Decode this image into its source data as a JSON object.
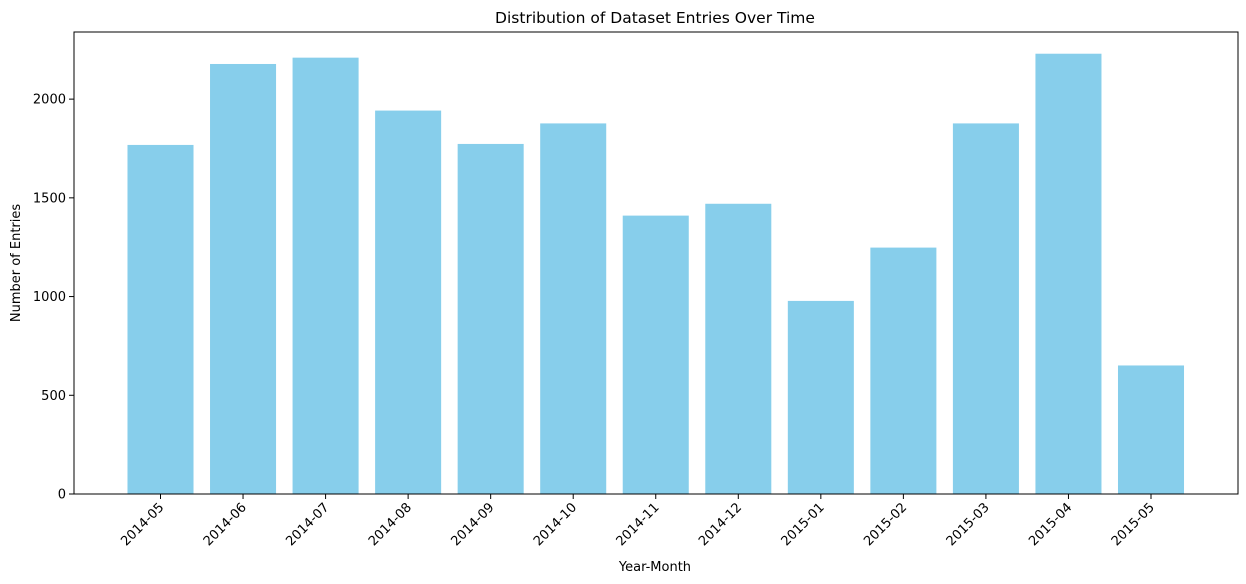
{
  "chart_data": {
    "type": "bar",
    "title": "Distribution of Dataset Entries Over Time",
    "xlabel": "Year-Month",
    "ylabel": "Number of Entries",
    "categories": [
      "2014-05",
      "2014-06",
      "2014-07",
      "2014-08",
      "2014-09",
      "2014-10",
      "2014-11",
      "2014-12",
      "2015-01",
      "2015-02",
      "2015-03",
      "2015-04",
      "2015-05"
    ],
    "values": [
      1768,
      2178,
      2210,
      1942,
      1773,
      1877,
      1410,
      1470,
      978,
      1248,
      1877,
      2230,
      651
    ],
    "ylim": [
      0,
      2340
    ],
    "yticks": [
      0,
      500,
      1000,
      1500,
      2000
    ],
    "bar_color": "#87CEEB",
    "grid": false,
    "legend": false
  }
}
